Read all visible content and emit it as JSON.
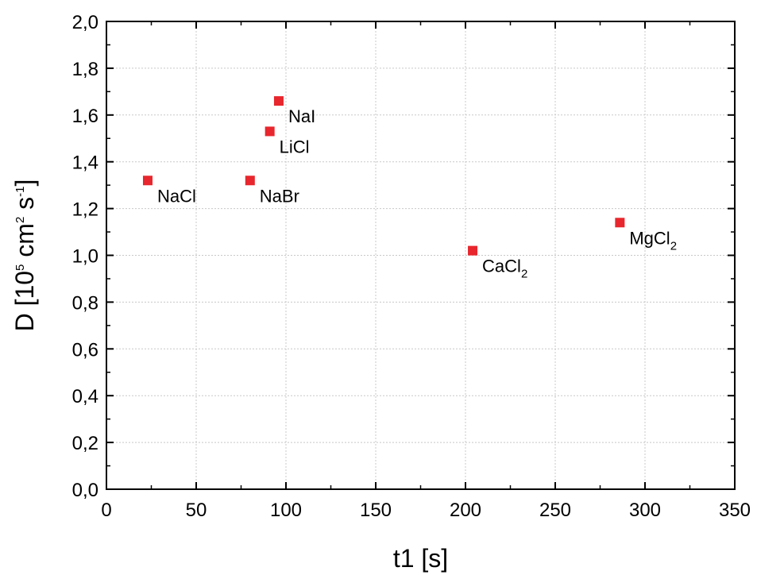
{
  "chart_data": {
    "type": "scatter",
    "xlabel": "t1 [s]",
    "ylabel": {
      "prefix": "D [10",
      "exp1": "5",
      "mid1": " cm",
      "exp2": "2",
      "mid2": " s",
      "exp3": "-1",
      "suffix": "]"
    },
    "xlim": [
      0,
      350
    ],
    "ylim": [
      0.0,
      2.0
    ],
    "x_ticks": [
      "0",
      "50",
      "100",
      "150",
      "200",
      "250",
      "300",
      "350"
    ],
    "y_ticks": [
      "0,0",
      "0,2",
      "0,4",
      "0,6",
      "0,8",
      "1,0",
      "1,2",
      "1,4",
      "1,6",
      "1,8",
      "2,0"
    ],
    "grid": true,
    "marker_color": "#e8262d",
    "points": [
      {
        "x": 23,
        "y": 1.32,
        "label": "NaCl",
        "sub": ""
      },
      {
        "x": 80,
        "y": 1.32,
        "label": "NaBr",
        "sub": ""
      },
      {
        "x": 91,
        "y": 1.53,
        "label": "LiCl",
        "sub": ""
      },
      {
        "x": 96,
        "y": 1.66,
        "label": "NaI",
        "sub": ""
      },
      {
        "x": 204,
        "y": 1.02,
        "label": "CaCl",
        "sub": "2"
      },
      {
        "x": 286,
        "y": 1.14,
        "label": "MgCl",
        "sub": "2"
      }
    ]
  }
}
